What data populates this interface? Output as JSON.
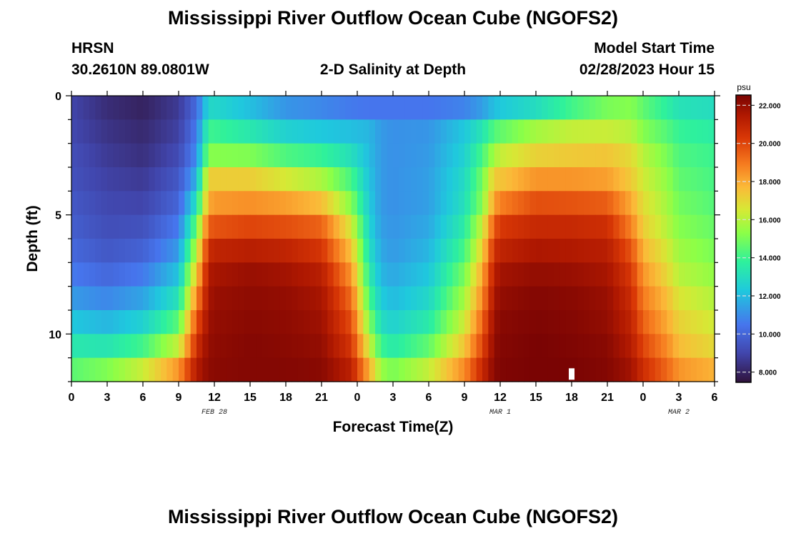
{
  "header": {
    "title": "Mississippi River Outflow Ocean Cube (NGOFS2)",
    "station": "HRSN",
    "coords": "30.2610N  89.0801W",
    "subtitle": "2-D Salinity at Depth",
    "model_start_label": "Model Start Time",
    "model_start_value": "02/28/2023 Hour 15"
  },
  "footer": {
    "title_repeat": "Mississippi River Outflow Ocean Cube (NGOFS2)"
  },
  "chart_data": {
    "type": "heatmap",
    "xlabel": "Forecast Time(Z)",
    "ylabel": "Depth (ft)",
    "x_range_hours": [
      0,
      54
    ],
    "y_range_ft": [
      0,
      12
    ],
    "x_ticks": [
      "0",
      "3",
      "6",
      "9",
      "12",
      "15",
      "18",
      "21",
      "0",
      "3",
      "6",
      "9",
      "12",
      "15",
      "18",
      "21",
      "0",
      "3",
      "6"
    ],
    "y_ticks": [
      "0",
      "5",
      "10"
    ],
    "date_labels": [
      {
        "label": "FEB 28",
        "hour": 12
      },
      {
        "label": "MAR 1",
        "hour": 36
      },
      {
        "label": "MAR 2",
        "hour": 51
      }
    ],
    "colorbar": {
      "unit": "psu",
      "min": 7.5,
      "max": 22.5,
      "tick_labels": [
        "22.000",
        "20.000",
        "18.000",
        "16.000",
        "14.000",
        "12.000",
        "10.000",
        "8.000"
      ],
      "tick_values": [
        22,
        20,
        18,
        16,
        14,
        12,
        10,
        8
      ]
    },
    "salinity_depths_ft": [
      0.5,
      1.5,
      2.5,
      3.5,
      4.5,
      5.5,
      6.5,
      7.5,
      8.5,
      9.5,
      10.5,
      11.5
    ],
    "salinity_hours": [
      0,
      3,
      6,
      9,
      10.5,
      11.5,
      12,
      15,
      18,
      21,
      23.5,
      25,
      26,
      27,
      30,
      33,
      34.5,
      35.5,
      36,
      39,
      42,
      45,
      47,
      48,
      50,
      51,
      54
    ],
    "salinity_psu": [
      [
        9.0,
        8.3,
        8.0,
        8.7,
        10.2,
        12.8,
        12.8,
        12.1,
        11.2,
        10.9,
        10.6,
        10.5,
        10.5,
        10.5,
        10.5,
        10.8,
        11.4,
        12.1,
        12.3,
        13.0,
        14.1,
        15.0,
        15.2,
        14.6,
        13.7,
        13.2,
        13.0
      ],
      [
        9.1,
        8.5,
        8.2,
        8.9,
        10.6,
        14.0,
        14.0,
        13.4,
        12.6,
        12.3,
        12.1,
        11.9,
        11.3,
        11.1,
        11.2,
        12.3,
        13.3,
        14.4,
        14.6,
        15.7,
        16.2,
        16.3,
        16.0,
        15.2,
        14.4,
        13.9,
        13.6
      ],
      [
        9.3,
        8.7,
        8.4,
        9.2,
        11.0,
        15.2,
        15.2,
        15.1,
        14.3,
        13.9,
        13.1,
        12.0,
        11.3,
        11.1,
        11.3,
        12.6,
        14.2,
        15.7,
        16.2,
        17.1,
        17.3,
        17.4,
        16.9,
        16.0,
        15.0,
        14.3,
        14.0
      ],
      [
        9.4,
        8.9,
        8.7,
        9.6,
        11.8,
        17.2,
        17.2,
        17.2,
        16.5,
        15.8,
        14.2,
        12.2,
        11.3,
        11.1,
        11.4,
        12.9,
        14.9,
        17.3,
        17.4,
        18.4,
        18.4,
        18.2,
        17.3,
        16.4,
        15.4,
        14.6,
        14.2
      ],
      [
        9.6,
        9.1,
        9.0,
        10.0,
        13.1,
        18.0,
        18.3,
        18.5,
        18.2,
        17.6,
        15.2,
        12.4,
        11.3,
        11.1,
        11.4,
        13.1,
        15.2,
        18.2,
        18.8,
        19.8,
        19.7,
        19.5,
        18.0,
        16.8,
        15.7,
        14.9,
        14.4
      ],
      [
        9.8,
        9.3,
        9.4,
        10.6,
        14.7,
        19.5,
        19.7,
        20.0,
        19.8,
        19.4,
        16.5,
        12.7,
        11.4,
        11.2,
        11.6,
        13.6,
        16.3,
        19.6,
        20.3,
        20.8,
        20.8,
        20.6,
        18.8,
        17.2,
        16.0,
        15.2,
        14.7
      ],
      [
        10.1,
        9.6,
        9.9,
        11.3,
        16.0,
        20.7,
        21.0,
        21.2,
        21.0,
        20.4,
        17.5,
        13.1,
        11.6,
        11.3,
        11.9,
        14.2,
        17.1,
        20.6,
        21.0,
        21.5,
        21.4,
        21.2,
        19.7,
        17.8,
        16.5,
        15.6,
        15.0
      ],
      [
        10.6,
        10.1,
        10.6,
        12.2,
        17.3,
        21.4,
        21.6,
        21.9,
        21.7,
        21.2,
        18.4,
        13.6,
        11.9,
        11.6,
        12.3,
        15.0,
        18.0,
        21.2,
        21.7,
        22.0,
        21.9,
        21.6,
        20.3,
        18.4,
        17.0,
        16.0,
        15.4
      ],
      [
        11.3,
        10.9,
        11.5,
        13.2,
        18.6,
        21.6,
        21.9,
        22.1,
        22.0,
        21.6,
        19.2,
        14.3,
        12.4,
        12.0,
        12.8,
        15.7,
        18.6,
        21.6,
        22.0,
        22.3,
        22.2,
        21.9,
        20.7,
        18.9,
        17.6,
        16.6,
        15.9
      ],
      [
        12.3,
        11.9,
        12.6,
        14.5,
        19.7,
        21.8,
        22.0,
        22.2,
        22.1,
        21.8,
        19.8,
        15.2,
        13.0,
        12.6,
        13.5,
        16.4,
        19.3,
        21.9,
        22.2,
        22.4,
        22.3,
        22.0,
        21.0,
        19.4,
        18.0,
        17.1,
        16.4
      ],
      [
        13.4,
        13.3,
        14.1,
        16.2,
        20.6,
        22.0,
        22.1,
        22.3,
        22.2,
        22.0,
        20.4,
        16.4,
        14.0,
        13.5,
        14.6,
        17.4,
        20.0,
        22.1,
        22.3,
        22.5,
        22.4,
        22.2,
        21.3,
        20.0,
        18.6,
        17.6,
        16.9
      ],
      [
        14.5,
        15.1,
        16.3,
        18.4,
        21.3,
        22.1,
        22.2,
        22.3,
        22.3,
        22.2,
        21.1,
        17.9,
        15.5,
        15.0,
        16.2,
        18.6,
        20.8,
        22.2,
        22.4,
        22.5,
        22.5,
        22.3,
        21.7,
        20.6,
        19.3,
        18.4,
        17.8
      ]
    ],
    "marker": {
      "hour": 42,
      "depth_ft": 11.8
    }
  }
}
